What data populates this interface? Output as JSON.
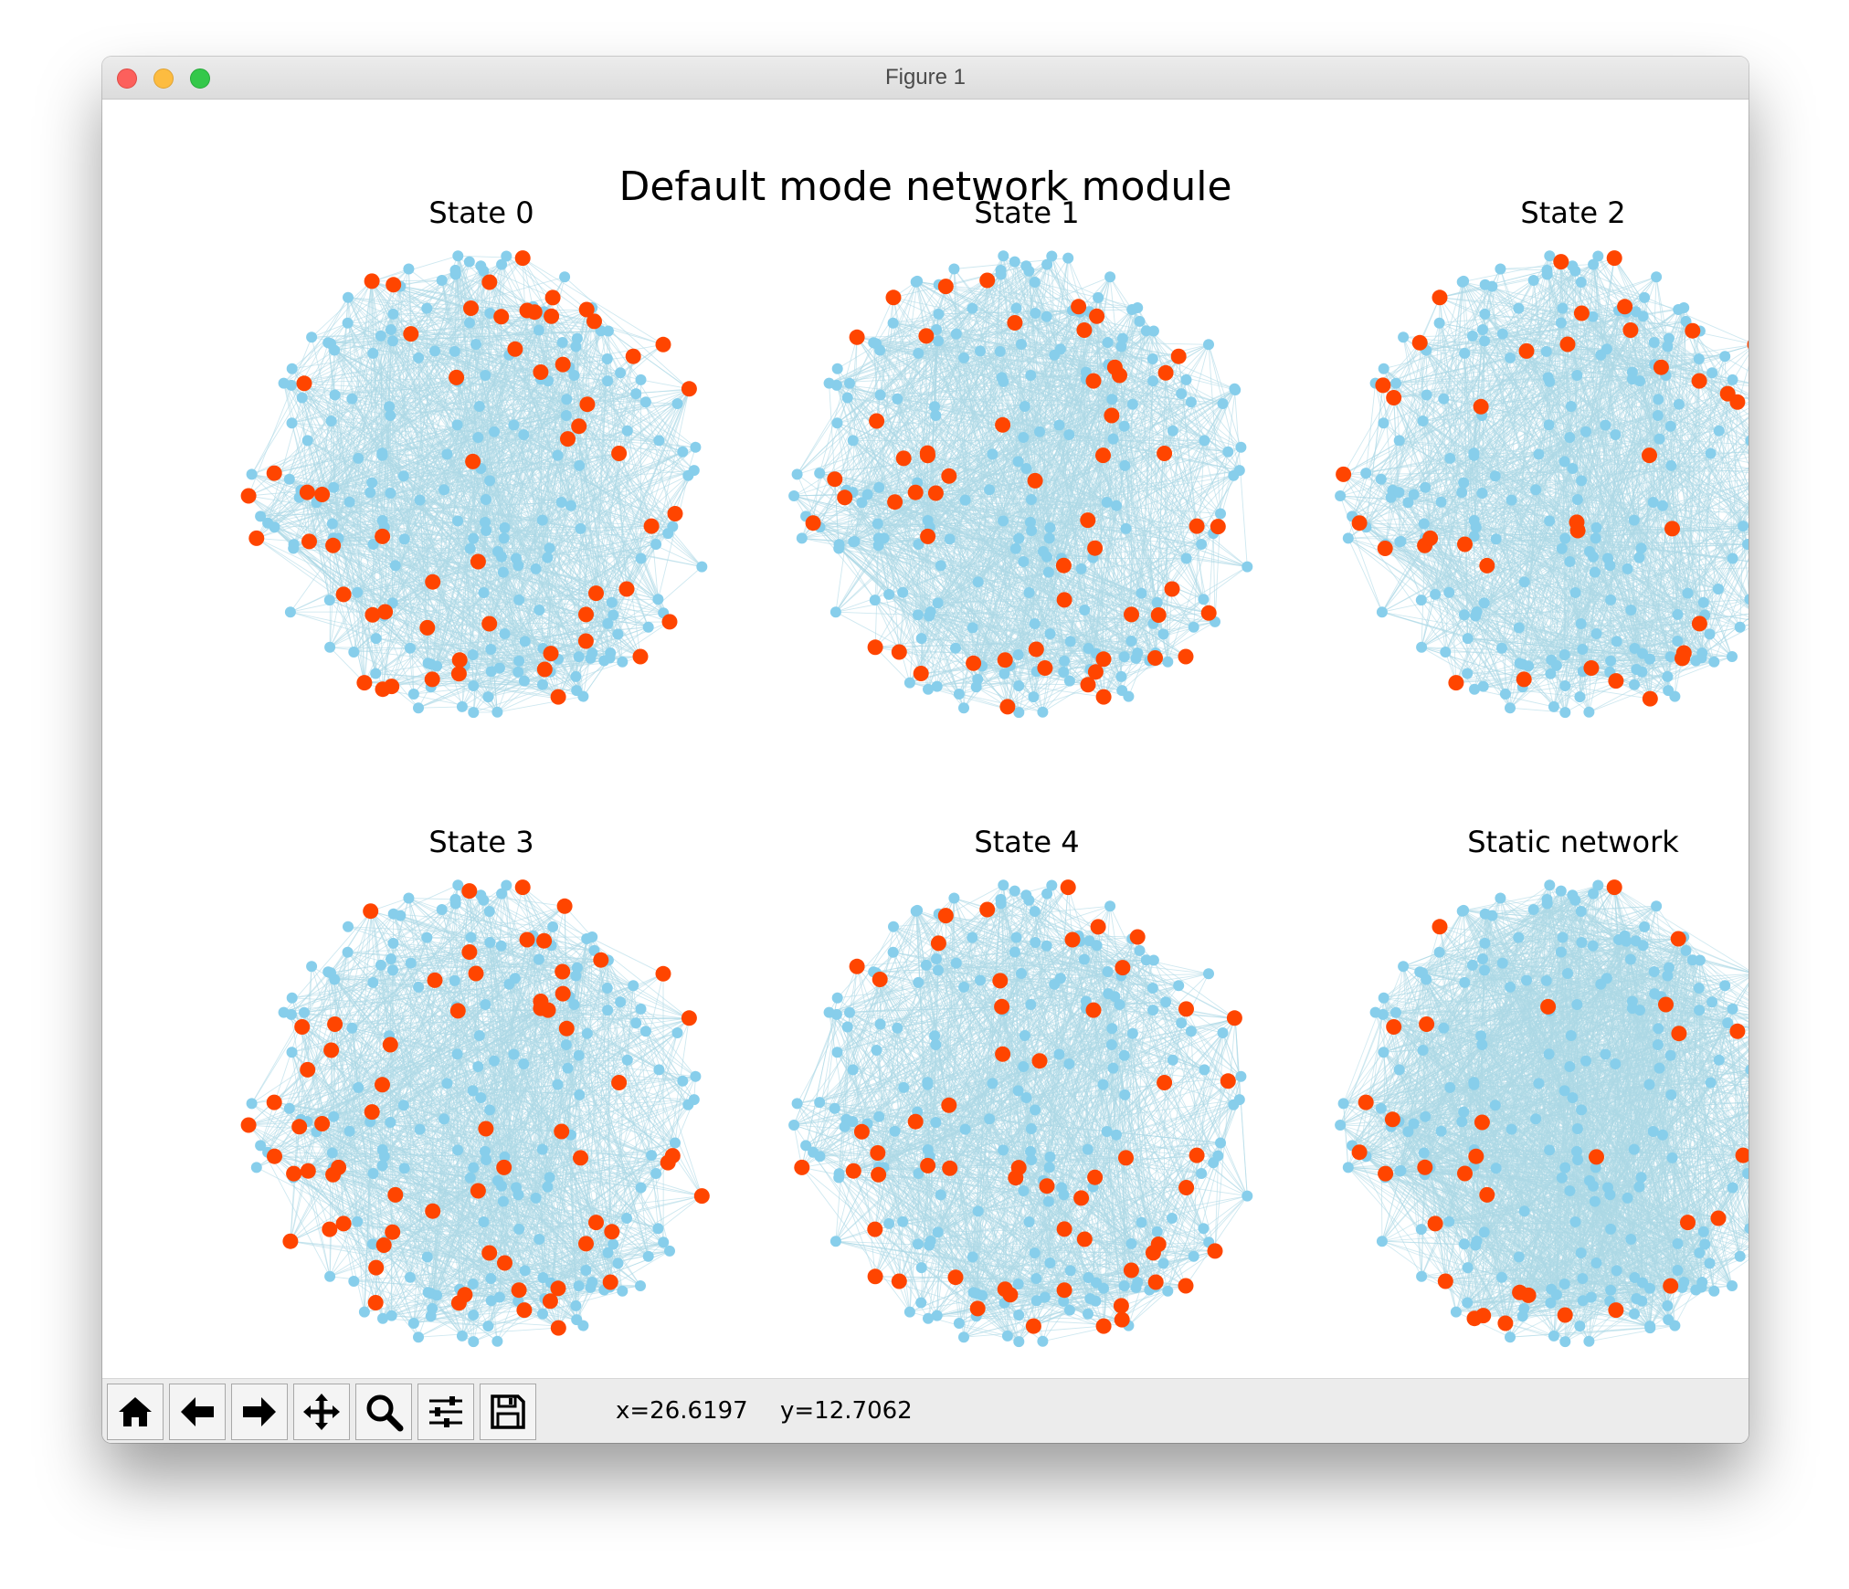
{
  "window": {
    "title": "Figure 1"
  },
  "figure": {
    "suptitle": "Default mode network module"
  },
  "toolbar": {
    "buttons": [
      {
        "name": "home-button",
        "icon": "home-icon"
      },
      {
        "name": "back-button",
        "icon": "arrow-left-icon"
      },
      {
        "name": "forward-button",
        "icon": "arrow-right-icon"
      },
      {
        "name": "pan-button",
        "icon": "move-icon"
      },
      {
        "name": "zoom-button",
        "icon": "magnifier-icon"
      },
      {
        "name": "configure-subplots-button",
        "icon": "sliders-icon"
      },
      {
        "name": "save-button",
        "icon": "floppy-disk-icon"
      }
    ],
    "x_readout": "x=26.6197",
    "y_readout": "y=12.7062"
  },
  "colors": {
    "node": "#87ceeb",
    "edge": "#add8e6",
    "module_node": "#ff4500"
  },
  "chart_data": [
    {
      "type": "network",
      "title": "State 0",
      "highlighted_nodes_approx": 58
    },
    {
      "type": "network",
      "title": "State 1",
      "highlighted_nodes_approx": 55
    },
    {
      "type": "network",
      "title": "State 2",
      "highlighted_nodes_approx": 37
    },
    {
      "type": "network",
      "title": "State 3",
      "highlighted_nodes_approx": 66
    },
    {
      "type": "network",
      "title": "State 4",
      "highlighted_nodes_approx": 56
    },
    {
      "type": "network",
      "title": "Static network",
      "highlighted_nodes_approx": 33
    }
  ]
}
